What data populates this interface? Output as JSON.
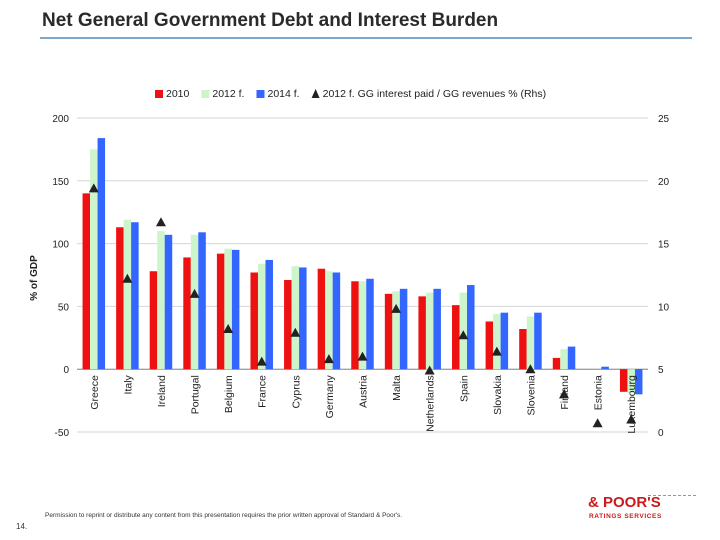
{
  "page": {
    "title": "Net General Government Debt and Interest Burden",
    "footer_note": "Permission to reprint or distribute any content from this presentation requires the prior written approval of Standard & Poor's.",
    "page_number": "14.",
    "logo_top": "& POOR'S",
    "logo_bottom": "RATINGS SERVICES",
    "logo_color": "#cc1a1a",
    "rule_color": "#7fa9c9"
  },
  "chart_data": {
    "type": "bar",
    "title": "",
    "xlabel": "",
    "ylabel": "% of GDP",
    "ylabel_right": "",
    "ylim": [
      -50,
      200
    ],
    "ylim_right": [
      0,
      25
    ],
    "yticks": [
      -50,
      0,
      50,
      100,
      150,
      200
    ],
    "yticks_right": [
      0,
      5,
      10,
      15,
      20,
      25
    ],
    "grid": true,
    "legend_position": "top",
    "categories": [
      "Greece",
      "Italy",
      "Ireland",
      "Portugal",
      "Belgium",
      "France",
      "Cyprus",
      "Germany",
      "Austria",
      "Malta",
      "Netherlands",
      "Spain",
      "Slovakia",
      "Slovenia",
      "Finland",
      "Estonia",
      "Luxembourg"
    ],
    "series": [
      {
        "name": "2010",
        "type": "bar",
        "axis": "left",
        "color": "#ee1111",
        "values": [
          140,
          113,
          78,
          89,
          92,
          77,
          71,
          80,
          70,
          60,
          58,
          51,
          38,
          32,
          9,
          0,
          -18
        ]
      },
      {
        "name": "2012 f.",
        "type": "bar",
        "axis": "left",
        "color": "#ccf5cc",
        "values": [
          175,
          119,
          110,
          107,
          96,
          84,
          82,
          78,
          70,
          62,
          61,
          61,
          44,
          42,
          16,
          0,
          -19
        ]
      },
      {
        "name": "2014 f.",
        "type": "bar",
        "axis": "left",
        "color": "#3366ff",
        "values": [
          184,
          117,
          107,
          109,
          95,
          87,
          81,
          77,
          72,
          64,
          64,
          67,
          45,
          45,
          18,
          2,
          -20
        ]
      },
      {
        "name": "2012 f. GG interest paid / GG revenues % (Rhs)",
        "type": "marker",
        "axis": "right",
        "color": "#222222",
        "values": [
          19.4,
          12.2,
          16.7,
          11.0,
          8.2,
          5.6,
          7.9,
          5.8,
          6.0,
          9.8,
          4.9,
          7.7,
          6.4,
          5.0,
          3.0,
          0.7,
          1.0
        ]
      }
    ]
  }
}
